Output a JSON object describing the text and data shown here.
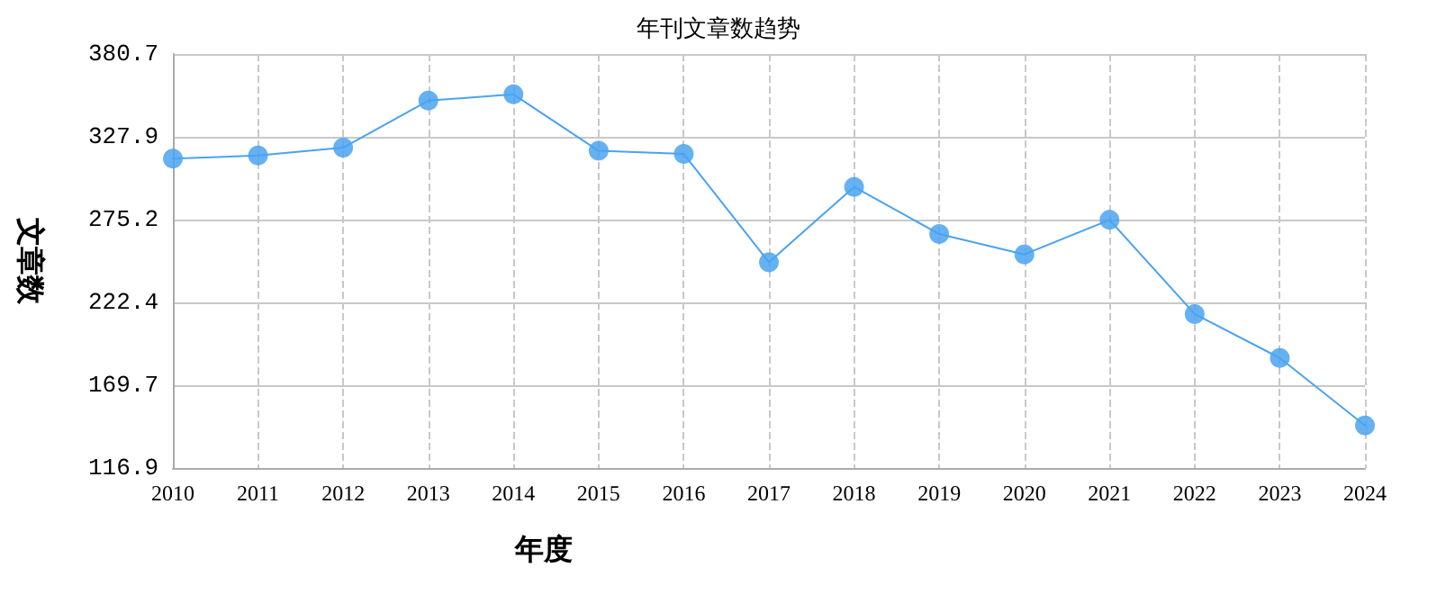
{
  "chart_data": {
    "type": "line",
    "title": "年刊文章数趋势",
    "xlabel": "年度",
    "ylabel": "文章数",
    "categories": [
      "2010",
      "2011",
      "2012",
      "2013",
      "2014",
      "2015",
      "2016",
      "2017",
      "2018",
      "2019",
      "2020",
      "2021",
      "2022",
      "2023",
      "2024"
    ],
    "series": [
      {
        "color": "#4aa3f0",
        "values": [
          314,
          316,
          321,
          351,
          355,
          319,
          317,
          248,
          296,
          266,
          253,
          275,
          215,
          187,
          144
        ]
      }
    ],
    "ylim": [
      116.9,
      380.7
    ],
    "yticks": [
      116.9,
      169.7,
      222.4,
      275.2,
      327.9,
      380.7
    ],
    "grid": true,
    "marker": "circle",
    "line_style": "solid"
  }
}
